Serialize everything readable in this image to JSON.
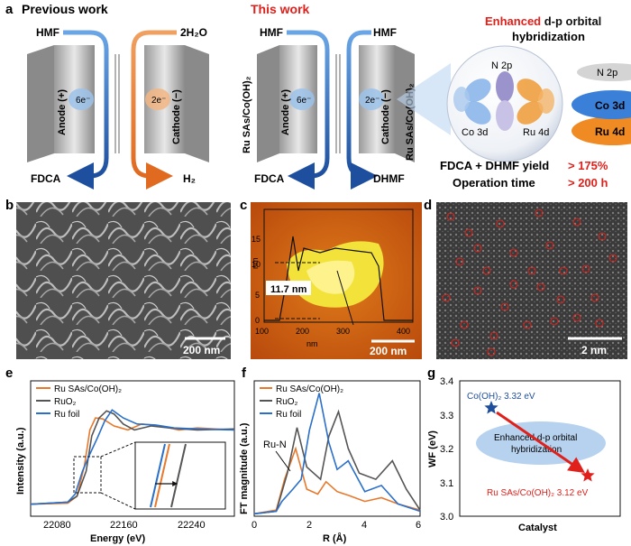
{
  "panel_a": {
    "label": "a",
    "previous_title": "Previous work",
    "this_title": "This work",
    "prev_left": {
      "top": "HMF",
      "bottom": "FDCA",
      "electrons": "6e⁻",
      "electrode": "Anode (+)"
    },
    "prev_right": {
      "top": "2H₂O",
      "bottom": "H₂",
      "electrons": "2e⁻",
      "electrode": "Cathode (−)"
    },
    "this_left": {
      "top": "HMF",
      "bottom": "FDCA",
      "electrons": "6e⁻",
      "electrode": "Anode (+)",
      "catalyst": "Ru SAs/Co(OH)₂"
    },
    "this_right": {
      "top": "HMF",
      "bottom": "DHMF",
      "electrons": "2e⁻",
      "electrode": "Cathode (−)",
      "catalyst": "Ru SAs/Co(OH)₂"
    },
    "headline_emph": "Enhanced",
    "headline_rest": " d-p orbital",
    "headline_line2": "hybridization",
    "orbitals": {
      "n2p": "N 2p",
      "co3d": "Co 3d",
      "ru4d": "Ru 4d"
    },
    "levels": {
      "n2p": "N 2p",
      "co3d": "Co 3d",
      "ru4d": "Ru 4d"
    },
    "metrics": [
      {
        "label": "FDCA + DHMF yield",
        "value": "> 175%"
      },
      {
        "label": "Operation time",
        "value": "> 200 h"
      }
    ]
  },
  "panel_b": {
    "label": "b",
    "scale": "200 nm"
  },
  "panel_c": {
    "label": "c",
    "scale": "200 nm",
    "annotation": "11.7 nm",
    "xlabel": "nm",
    "ylabel": "nm",
    "xticks": [
      "100",
      "200",
      "300",
      "400"
    ],
    "yticks": [
      "0",
      "5",
      "10",
      "15"
    ]
  },
  "panel_d": {
    "label": "d",
    "scale": "2 nm"
  },
  "panel_e": {
    "label": "e",
    "xlabel": "Energy (eV)",
    "ylabel": "Intensity (a.u.)",
    "xticks": [
      "22080",
      "22160",
      "22240"
    ],
    "legend": [
      "Ru SAs/Co(OH)₂",
      "RuO₂",
      "Ru foil"
    ]
  },
  "panel_f": {
    "label": "f",
    "xlabel": "R (Å)",
    "ylabel": "FT magnitude (a.u.)",
    "xticks": [
      "0",
      "2",
      "4",
      "6"
    ],
    "legend": [
      "Ru SAs/Co(OH)₂",
      "RuO₂",
      "Ru foil"
    ],
    "annotation": "Ru-N"
  },
  "panel_g": {
    "label": "g",
    "xlabel": "Catalyst",
    "ylabel": "WF (eV)",
    "yticks": [
      "3.0",
      "3.1",
      "3.2",
      "3.3",
      "3.4"
    ],
    "ellipse_line1": "Enhanced d-p orbital",
    "ellipse_line2": "hybridization",
    "point1_label": "Co(OH)₂ 3.32 eV",
    "point2_label": "Ru SAs/Co(OH)₂ 3.12 eV"
  },
  "colors": {
    "orange": "#e8792c",
    "blue": "#2a6fc9",
    "gray": "#555555",
    "red": "#e0201b",
    "navy": "#1f4e9c"
  },
  "chart_data": [
    {
      "type": "line",
      "panel": "e",
      "xlabel": "Energy (eV)",
      "ylabel": "Intensity (a.u.)",
      "xlim": [
        22060,
        22280
      ],
      "series": [
        {
          "name": "Ru SAs/Co(OH)₂",
          "x": [
            22060,
            22100,
            22110,
            22118,
            22124,
            22130,
            22138,
            22150,
            22165,
            22180,
            22200,
            22220,
            22240,
            22260,
            22280
          ],
          "y": [
            0.12,
            0.13,
            0.2,
            0.5,
            0.86,
            0.98,
            0.97,
            0.9,
            0.86,
            0.92,
            0.9,
            0.86,
            0.88,
            0.87,
            0.86
          ]
        },
        {
          "name": "RuO₂",
          "x": [
            22060,
            22100,
            22110,
            22120,
            22126,
            22134,
            22142,
            22150,
            22160,
            22172,
            22190,
            22210,
            22240,
            22280
          ],
          "y": [
            0.12,
            0.14,
            0.2,
            0.45,
            0.8,
            0.98,
            1.05,
            1.02,
            0.92,
            0.86,
            0.9,
            0.88,
            0.86,
            0.87
          ]
        },
        {
          "name": "Ru foil",
          "x": [
            22060,
            22100,
            22108,
            22116,
            22124,
            22132,
            22140,
            22148,
            22160,
            22175,
            22195,
            22215,
            22240,
            22280
          ],
          "y": [
            0.12,
            0.14,
            0.22,
            0.45,
            0.62,
            0.78,
            0.95,
            1.06,
            0.98,
            0.92,
            0.91,
            0.88,
            0.87,
            0.86
          ]
        }
      ]
    },
    {
      "type": "line",
      "panel": "f",
      "xlabel": "R (Å)",
      "ylabel": "FT magnitude (a.u.)",
      "xlim": [
        0,
        6
      ],
      "series": [
        {
          "name": "Ru SAs/Co(OH)₂",
          "x": [
            0,
            0.8,
            1.1,
            1.5,
            1.9,
            2.3,
            2.6,
            3.0,
            3.4,
            4.0,
            4.6,
            5.2,
            6.0
          ],
          "y": [
            0.02,
            0.05,
            0.3,
            0.55,
            0.22,
            0.18,
            0.28,
            0.2,
            0.17,
            0.12,
            0.15,
            0.1,
            0.05
          ]
        },
        {
          "name": "RuO₂",
          "x": [
            0,
            0.8,
            1.2,
            1.55,
            1.9,
            2.4,
            2.7,
            3.05,
            3.4,
            3.8,
            4.4,
            5.0,
            5.5,
            6.0
          ],
          "y": [
            0.02,
            0.04,
            0.35,
            0.72,
            0.4,
            0.3,
            0.65,
            0.85,
            0.55,
            0.35,
            0.3,
            0.45,
            0.22,
            0.05
          ]
        },
        {
          "name": "Ru foil",
          "x": [
            0,
            0.8,
            1.0,
            1.4,
            1.7,
            2.0,
            2.35,
            2.7,
            3.0,
            3.4,
            4.0,
            4.6,
            5.2,
            6.0
          ],
          "y": [
            0.02,
            0.04,
            0.12,
            0.22,
            0.3,
            0.7,
            1.0,
            0.6,
            0.38,
            0.45,
            0.2,
            0.25,
            0.1,
            0.04
          ]
        }
      ]
    },
    {
      "type": "scatter",
      "panel": "g",
      "xlabel": "Catalyst",
      "ylabel": "WF (eV)",
      "ylim": [
        3.0,
        3.4
      ],
      "categories": [
        "Co(OH)₂",
        "Ru SAs/Co(OH)₂"
      ],
      "values": [
        3.32,
        3.12
      ]
    }
  ]
}
